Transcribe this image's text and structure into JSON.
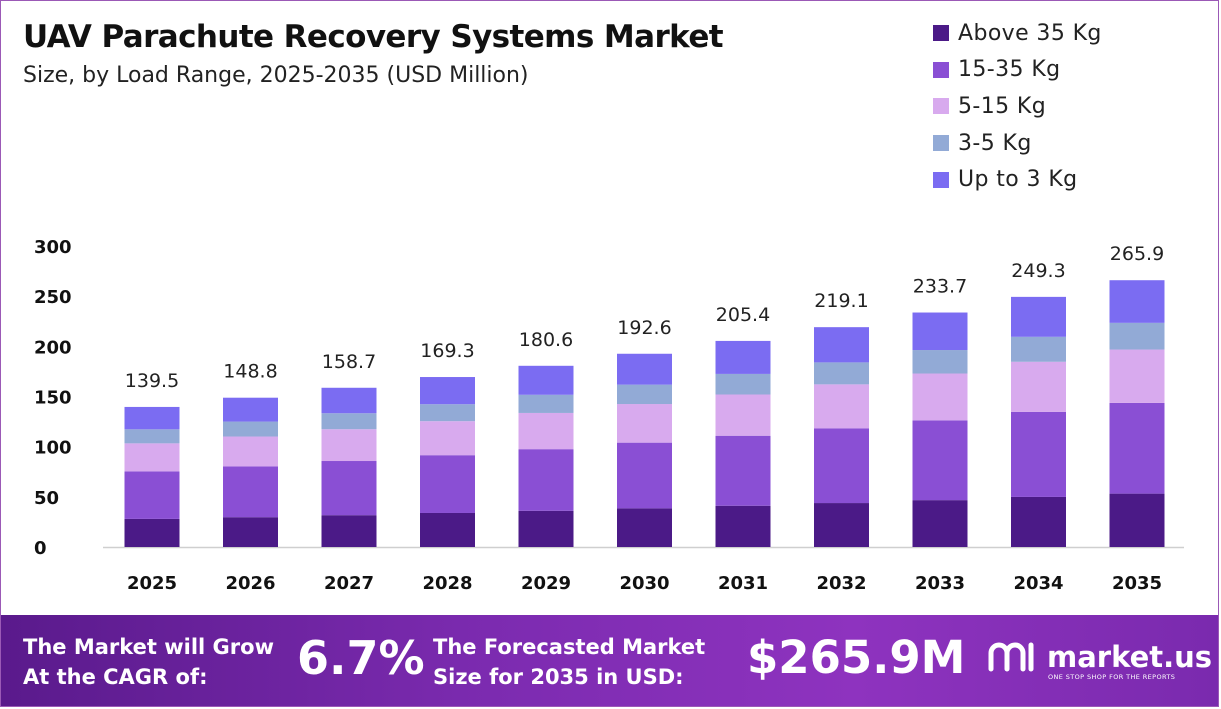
{
  "title": "UAV Parachute Recovery Systems Market",
  "subtitle": "Size, by Load Range, 2025-2035 (USD Million)",
  "legend": [
    {
      "label": "Above 35 Kg",
      "color": "#4b1a87"
    },
    {
      "label": "15-35 Kg",
      "color": "#8a4fd4"
    },
    {
      "label": "5-15 Kg",
      "color": "#d8aaee"
    },
    {
      "label": "3-5 Kg",
      "color": "#92aad6"
    },
    {
      "label": "Up to 3 Kg",
      "color": "#7b6cf2"
    }
  ],
  "chart_data": {
    "type": "bar",
    "stacked": true,
    "title": "UAV Parachute Recovery Systems Market",
    "subtitle": "Size, by Load Range, 2025-2035 (USD Million)",
    "xlabel": "",
    "ylabel": "",
    "ylim": [
      0,
      300
    ],
    "yticks": [
      0,
      50,
      100,
      150,
      200,
      250,
      300
    ],
    "grid": false,
    "legend_position": "top-right",
    "categories": [
      "2025",
      "2026",
      "2027",
      "2028",
      "2029",
      "2030",
      "2031",
      "2032",
      "2033",
      "2034",
      "2035"
    ],
    "totals": [
      139.5,
      148.8,
      158.7,
      169.3,
      180.6,
      192.6,
      205.4,
      219.1,
      233.7,
      249.3,
      265.9
    ],
    "series": [
      {
        "name": "Above 35 Kg",
        "color": "#4b1a87",
        "values": [
          28.0,
          29.7,
          31.7,
          33.9,
          36.1,
          38.5,
          41.1,
          43.8,
          46.7,
          49.9,
          53.2
        ]
      },
      {
        "name": "15-35 Kg",
        "color": "#8a4fd4",
        "values": [
          47.4,
          50.6,
          54.0,
          57.6,
          61.4,
          65.5,
          69.8,
          74.5,
          79.5,
          84.8,
          90.4
        ]
      },
      {
        "name": "5-15 Kg",
        "color": "#d8aaee",
        "values": [
          27.9,
          29.8,
          31.7,
          33.9,
          36.1,
          38.5,
          41.1,
          43.8,
          46.7,
          49.9,
          53.2
        ]
      },
      {
        "name": "3-5 Kg",
        "color": "#92aad6",
        "values": [
          14.0,
          14.9,
          15.9,
          16.9,
          18.1,
          19.3,
          20.5,
          21.9,
          23.4,
          24.9,
          26.6
        ]
      },
      {
        "name": "Up to 3 Kg",
        "color": "#7b6cf2",
        "values": [
          22.3,
          23.8,
          25.4,
          27.1,
          28.9,
          30.8,
          32.9,
          35.1,
          37.4,
          39.8,
          42.5
        ]
      }
    ]
  },
  "footer": {
    "cagr_text_line1": "The Market will Grow",
    "cagr_text_line2": "At the CAGR of:",
    "cagr_value": "6.7%",
    "forecast_text_line1": "The Forecasted Market",
    "forecast_text_line2": "Size for 2035 in USD:",
    "forecast_value": "$265.9M",
    "brand_name": "market.us",
    "brand_tagline": "ONE STOP SHOP FOR THE REPORTS"
  }
}
